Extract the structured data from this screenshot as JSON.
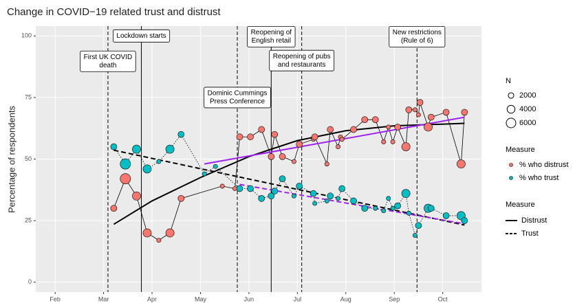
{
  "chart_data": {
    "type": "scatter",
    "title": "Change in COVID−19 related trust and distrust",
    "y_label": "Percentage of respondents",
    "xlim": [
      1.6,
      10.8
    ],
    "ylim": [
      -4,
      104
    ],
    "xticks": [
      {
        "value": 2,
        "label": "Feb"
      },
      {
        "value": 3,
        "label": "Mar"
      },
      {
        "value": 4,
        "label": "Apr"
      },
      {
        "value": 5,
        "label": "May"
      },
      {
        "value": 6,
        "label": "Jun"
      },
      {
        "value": 7,
        "label": "Jul"
      },
      {
        "value": 8,
        "label": "Aug"
      },
      {
        "value": 9,
        "label": "Sep"
      },
      {
        "value": 10,
        "label": "Oct"
      }
    ],
    "yticks": [
      0,
      25,
      50,
      75,
      100
    ],
    "grid": true,
    "size_legend": {
      "title": "N",
      "values": [
        2000,
        4000,
        6000
      ]
    },
    "point_legend_title": "Measure",
    "line_legend_title": "Measure",
    "series": [
      {
        "name": "% who distrust",
        "color": "#F8766D",
        "connector": "solid",
        "x": [
          3.21,
          3.45,
          3.68,
          3.9,
          4.14,
          4.37,
          4.6,
          5.45,
          5.71,
          5.81,
          6.03,
          6.26,
          6.46,
          6.53,
          6.69,
          6.93,
          7.04,
          7.33,
          7.36,
          7.61,
          7.68,
          7.84,
          7.89,
          7.92,
          8.16,
          8.39,
          8.61,
          8.78,
          8.88,
          8.97,
          9.07,
          9.24,
          9.3,
          9.43,
          9.5,
          9.53,
          9.7,
          9.76,
          10.07,
          10.38,
          10.45
        ],
        "values": [
          30,
          42,
          35,
          20,
          17,
          20,
          34,
          39,
          38,
          59,
          59,
          62,
          51,
          60,
          51,
          49,
          56,
          58,
          59,
          48,
          62,
          55,
          59,
          58,
          62,
          66,
          66,
          57,
          63,
          57,
          63,
          55,
          70,
          70,
          68,
          73,
          63,
          67,
          69,
          48,
          69
        ],
        "sizes": [
          2500,
          7000,
          4500,
          4500,
          1200,
          4500,
          2500,
          1200,
          1200,
          2500,
          2500,
          2500,
          2500,
          2500,
          2500,
          1200,
          2500,
          1200,
          2500,
          1200,
          2500,
          1200,
          1200,
          1200,
          2500,
          2500,
          2500,
          1200,
          1200,
          1200,
          2500,
          4500,
          2500,
          1200,
          1200,
          2500,
          4500,
          2500,
          2500,
          4500,
          2500
        ]
      },
      {
        "name": "% who trust",
        "color": "#00BFC4",
        "connector": "dotted",
        "x": [
          3.21,
          3.45,
          3.68,
          3.9,
          4.14,
          4.37,
          4.6,
          5.08,
          5.31,
          5.81,
          6.03,
          6.26,
          6.46,
          6.53,
          6.69,
          6.93,
          7.04,
          7.33,
          7.36,
          7.61,
          7.68,
          7.84,
          7.92,
          8.16,
          8.39,
          8.61,
          8.78,
          8.88,
          8.97,
          9.07,
          9.24,
          9.3,
          9.43,
          9.5,
          9.7,
          9.76,
          10.07,
          10.38,
          10.45
        ],
        "values": [
          55,
          48,
          54,
          46,
          49,
          54,
          60,
          44,
          47,
          38,
          38,
          34,
          35,
          37,
          42,
          35,
          39,
          36,
          32,
          33,
          35,
          34,
          38,
          33,
          30,
          30,
          29,
          34,
          30,
          31,
          36,
          28,
          19,
          23,
          30,
          30,
          27,
          27,
          25
        ],
        "sizes": [
          2500,
          7000,
          4500,
          4500,
          1200,
          4500,
          2500,
          1200,
          1200,
          2500,
          2500,
          2500,
          2500,
          2500,
          2500,
          1200,
          2500,
          2500,
          1200,
          1200,
          2500,
          1200,
          2500,
          2500,
          2500,
          1200,
          1200,
          1200,
          1200,
          2500,
          4500,
          1200,
          1200,
          2500,
          4500,
          2500,
          2500,
          4500,
          2500
        ]
      }
    ],
    "fits": [
      {
        "name": "Distrust",
        "color": "#000000",
        "linetype": "solid",
        "x": [
          3.21,
          4.0,
          5.0,
          6.0,
          7.0,
          8.0,
          9.0,
          10.45
        ],
        "values": [
          23.5,
          33,
          42.5,
          51,
          57.5,
          61.5,
          63.5,
          64.5
        ]
      },
      {
        "name": "Trust",
        "color": "#000000",
        "linetype": "dashed",
        "x": [
          3.21,
          10.45
        ],
        "values": [
          53.6,
          23.2
        ]
      },
      {
        "color": "#A020F0",
        "linetype": "solid",
        "x": [
          5.08,
          10.45
        ],
        "values": [
          48,
          67
        ]
      },
      {
        "color": "#A020F0",
        "linetype": "dashed",
        "x": [
          5.81,
          10.45
        ],
        "values": [
          39.7,
          23.7
        ]
      }
    ],
    "annotations": [
      {
        "lines": [
          "First UK COVID",
          "death"
        ],
        "x": 3.09,
        "y": 89.7,
        "linetype": "dashed"
      },
      {
        "lines": [
          "Lockdown starts"
        ],
        "x": 3.78,
        "y": 100,
        "linetype": "solid"
      },
      {
        "lines": [
          "Dominic Cummings",
          "Press Conference"
        ],
        "x": 5.76,
        "y": 75,
        "linetype": "dashed"
      },
      {
        "lines": [
          "Reopening of",
          "English retail"
        ],
        "x": 6.46,
        "y": 99.7,
        "linetype": "solid"
      },
      {
        "lines": [
          "Reopening of pubs",
          "and restaurants"
        ],
        "x": 7.09,
        "y": 90,
        "linetype": "dashed"
      },
      {
        "lines": [
          "New restrictions",
          "(Rule of 6)"
        ],
        "x": 9.47,
        "y": 99.7,
        "linetype": "dashed"
      }
    ]
  }
}
